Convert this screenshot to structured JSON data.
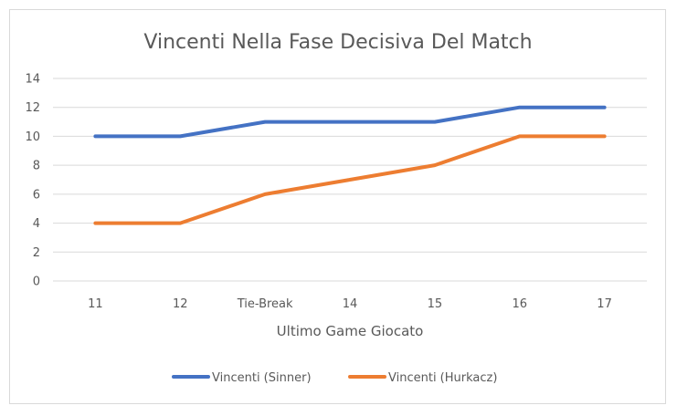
{
  "chart_data": {
    "type": "line",
    "title": "Vincenti Nella Fase Decisiva Del Match",
    "xlabel": "Ultimo Game Giocato",
    "ylabel": "",
    "categories": [
      "11",
      "12",
      "Tie-Break",
      "14",
      "15",
      "16",
      "17"
    ],
    "ylim": [
      0,
      14
    ],
    "yticks": [
      0,
      2,
      4,
      6,
      8,
      10,
      12,
      14
    ],
    "grid": true,
    "legend_position": "bottom",
    "series": [
      {
        "name": "Vincenti (Sinner)",
        "color": "#4472c4",
        "values": [
          10,
          10,
          11,
          11,
          11,
          12,
          12
        ]
      },
      {
        "name": "Vincenti (Hurkacz)",
        "color": "#ed7d31",
        "values": [
          4,
          4,
          6,
          7,
          8,
          10,
          10
        ]
      }
    ]
  }
}
